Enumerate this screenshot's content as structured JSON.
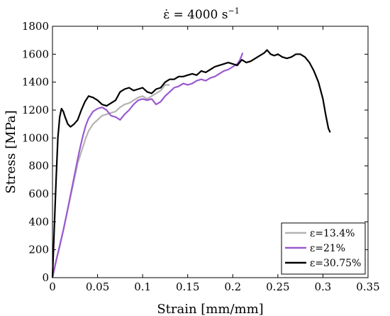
{
  "chart_data": {
    "type": "line",
    "title": {
      "prefix": "ε̇ = 4000 s",
      "superscript": "−1"
    },
    "xlabel": "Strain [mm/mm]",
    "ylabel": "Stress [MPa]",
    "xlim": [
      0,
      0.35
    ],
    "ylim": [
      0,
      1800
    ],
    "xticks": [
      0,
      0.05,
      0.1,
      0.15,
      0.2,
      0.25,
      0.3,
      0.35
    ],
    "xtick_labels": [
      "0",
      "0.05",
      "0.1",
      "0.15",
      "0.2",
      "0.25",
      "0.3",
      "0.35"
    ],
    "yticks": [
      0,
      200,
      400,
      600,
      800,
      1000,
      1200,
      1400,
      1600,
      1800
    ],
    "ytick_labels": [
      "0",
      "200",
      "400",
      "600",
      "800",
      "1000",
      "1200",
      "1400",
      "1600",
      "1800"
    ],
    "grid": false,
    "legend_position": "bottom-right",
    "series": [
      {
        "name": "ε=13.4%",
        "color": "#b3b3b3",
        "points": [
          [
            0,
            0
          ],
          [
            0.004,
            120
          ],
          [
            0.008,
            220
          ],
          [
            0.012,
            340
          ],
          [
            0.016,
            460
          ],
          [
            0.02,
            580
          ],
          [
            0.024,
            700
          ],
          [
            0.028,
            820
          ],
          [
            0.031,
            880
          ],
          [
            0.034,
            940
          ],
          [
            0.037,
            1000
          ],
          [
            0.04,
            1050
          ],
          [
            0.045,
            1100
          ],
          [
            0.05,
            1130
          ],
          [
            0.055,
            1160
          ],
          [
            0.06,
            1170
          ],
          [
            0.065,
            1180
          ],
          [
            0.07,
            1190
          ],
          [
            0.075,
            1220
          ],
          [
            0.08,
            1240
          ],
          [
            0.085,
            1250
          ],
          [
            0.09,
            1270
          ],
          [
            0.095,
            1290
          ],
          [
            0.1,
            1300
          ],
          [
            0.105,
            1280
          ],
          [
            0.11,
            1300
          ],
          [
            0.115,
            1320
          ],
          [
            0.12,
            1340
          ],
          [
            0.125,
            1380
          ],
          [
            0.13,
            1380
          ]
        ]
      },
      {
        "name": "ε=21%",
        "color": "#9b59d0",
        "points": [
          [
            0,
            0
          ],
          [
            0.004,
            120
          ],
          [
            0.008,
            230
          ],
          [
            0.012,
            340
          ],
          [
            0.016,
            460
          ],
          [
            0.02,
            590
          ],
          [
            0.024,
            720
          ],
          [
            0.028,
            850
          ],
          [
            0.031,
            940
          ],
          [
            0.034,
            1020
          ],
          [
            0.037,
            1090
          ],
          [
            0.04,
            1140
          ],
          [
            0.045,
            1190
          ],
          [
            0.05,
            1210
          ],
          [
            0.055,
            1220
          ],
          [
            0.06,
            1200
          ],
          [
            0.065,
            1160
          ],
          [
            0.07,
            1150
          ],
          [
            0.075,
            1130
          ],
          [
            0.08,
            1170
          ],
          [
            0.085,
            1200
          ],
          [
            0.09,
            1240
          ],
          [
            0.095,
            1270
          ],
          [
            0.1,
            1280
          ],
          [
            0.105,
            1270
          ],
          [
            0.11,
            1280
          ],
          [
            0.115,
            1240
          ],
          [
            0.12,
            1260
          ],
          [
            0.125,
            1300
          ],
          [
            0.13,
            1330
          ],
          [
            0.135,
            1360
          ],
          [
            0.14,
            1370
          ],
          [
            0.145,
            1390
          ],
          [
            0.15,
            1380
          ],
          [
            0.155,
            1390
          ],
          [
            0.16,
            1410
          ],
          [
            0.165,
            1420
          ],
          [
            0.17,
            1410
          ],
          [
            0.175,
            1430
          ],
          [
            0.18,
            1440
          ],
          [
            0.185,
            1460
          ],
          [
            0.19,
            1480
          ],
          [
            0.195,
            1490
          ],
          [
            0.2,
            1510
          ],
          [
            0.205,
            1530
          ],
          [
            0.208,
            1560
          ],
          [
            0.211,
            1610
          ]
        ]
      },
      {
        "name": "ε=30.75%",
        "color": "#000000",
        "points": [
          [
            0,
            0
          ],
          [
            0.002,
            350
          ],
          [
            0.004,
            700
          ],
          [
            0.006,
            1000
          ],
          [
            0.008,
            1150
          ],
          [
            0.01,
            1210
          ],
          [
            0.012,
            1190
          ],
          [
            0.014,
            1150
          ],
          [
            0.017,
            1100
          ],
          [
            0.02,
            1080
          ],
          [
            0.024,
            1100
          ],
          [
            0.028,
            1130
          ],
          [
            0.032,
            1200
          ],
          [
            0.036,
            1260
          ],
          [
            0.04,
            1300
          ],
          [
            0.045,
            1290
          ],
          [
            0.05,
            1270
          ],
          [
            0.055,
            1240
          ],
          [
            0.06,
            1230
          ],
          [
            0.065,
            1250
          ],
          [
            0.07,
            1270
          ],
          [
            0.075,
            1330
          ],
          [
            0.08,
            1350
          ],
          [
            0.085,
            1360
          ],
          [
            0.09,
            1340
          ],
          [
            0.095,
            1350
          ],
          [
            0.1,
            1360
          ],
          [
            0.105,
            1330
          ],
          [
            0.11,
            1320
          ],
          [
            0.115,
            1350
          ],
          [
            0.12,
            1360
          ],
          [
            0.125,
            1400
          ],
          [
            0.13,
            1420
          ],
          [
            0.135,
            1420
          ],
          [
            0.14,
            1440
          ],
          [
            0.145,
            1440
          ],
          [
            0.15,
            1450
          ],
          [
            0.155,
            1460
          ],
          [
            0.16,
            1450
          ],
          [
            0.165,
            1480
          ],
          [
            0.17,
            1470
          ],
          [
            0.175,
            1490
          ],
          [
            0.18,
            1510
          ],
          [
            0.185,
            1520
          ],
          [
            0.19,
            1530
          ],
          [
            0.195,
            1540
          ],
          [
            0.2,
            1530
          ],
          [
            0.205,
            1520
          ],
          [
            0.21,
            1560
          ],
          [
            0.215,
            1540
          ],
          [
            0.22,
            1550
          ],
          [
            0.225,
            1570
          ],
          [
            0.23,
            1590
          ],
          [
            0.235,
            1610
          ],
          [
            0.238,
            1630
          ],
          [
            0.242,
            1600
          ],
          [
            0.246,
            1590
          ],
          [
            0.25,
            1600
          ],
          [
            0.255,
            1580
          ],
          [
            0.26,
            1570
          ],
          [
            0.265,
            1580
          ],
          [
            0.27,
            1600
          ],
          [
            0.275,
            1600
          ],
          [
            0.28,
            1580
          ],
          [
            0.285,
            1540
          ],
          [
            0.29,
            1480
          ],
          [
            0.295,
            1400
          ],
          [
            0.3,
            1280
          ],
          [
            0.303,
            1170
          ],
          [
            0.306,
            1070
          ],
          [
            0.308,
            1040
          ]
        ]
      }
    ]
  }
}
